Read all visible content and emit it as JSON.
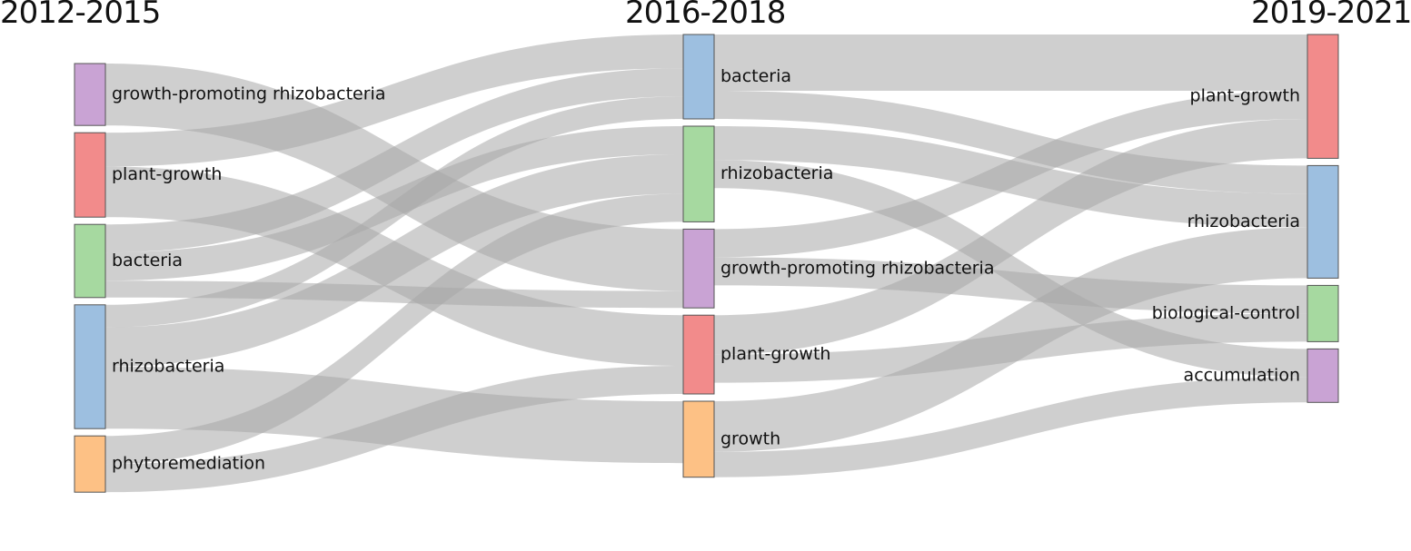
{
  "columns": [
    {
      "key": "c0",
      "title": "2012-2015"
    },
    {
      "key": "c1",
      "title": "2016-2018"
    },
    {
      "key": "c2",
      "title": "2019-2021"
    }
  ],
  "colors": {
    "purple": "#c9a3d4",
    "red": "#f28b8b",
    "green": "#a6d9a0",
    "blue": "#9dbfe0",
    "orange": "#fdc185",
    "link": "#a8a8a8"
  },
  "nodes": [
    {
      "id": "a_gpr",
      "column": 0,
      "label": "growth-promoting rhizobacteria",
      "color": "purple"
    },
    {
      "id": "a_pg",
      "column": 0,
      "label": "plant-growth",
      "color": "red"
    },
    {
      "id": "a_bac",
      "column": 0,
      "label": "bacteria",
      "color": "green"
    },
    {
      "id": "a_rhz",
      "column": 0,
      "label": "rhizobacteria",
      "color": "blue"
    },
    {
      "id": "a_phy",
      "column": 0,
      "label": "phytoremediation",
      "color": "orange"
    },
    {
      "id": "b_bac",
      "column": 1,
      "label": "bacteria",
      "color": "blue"
    },
    {
      "id": "b_rhz",
      "column": 1,
      "label": "rhizobacteria",
      "color": "green"
    },
    {
      "id": "b_gpr",
      "column": 1,
      "label": "growth-promoting rhizobacteria",
      "color": "purple"
    },
    {
      "id": "b_pg",
      "column": 1,
      "label": "plant-growth",
      "color": "red"
    },
    {
      "id": "b_gro",
      "column": 1,
      "label": "growth",
      "color": "orange"
    },
    {
      "id": "c_pg",
      "column": 2,
      "label": "plant-growth",
      "color": "red"
    },
    {
      "id": "c_rhz",
      "column": 2,
      "label": "rhizobacteria",
      "color": "blue"
    },
    {
      "id": "c_bio",
      "column": 2,
      "label": "biological-control",
      "color": "green"
    },
    {
      "id": "c_acc",
      "column": 2,
      "label": "accumulation",
      "color": "purple"
    }
  ],
  "links": [
    {
      "source": "a_gpr",
      "target": "b_gpr",
      "value": 22
    },
    {
      "source": "a_pg",
      "target": "b_bac",
      "value": 12
    },
    {
      "source": "a_pg",
      "target": "b_pg",
      "value": 18
    },
    {
      "source": "a_bac",
      "target": "b_bac",
      "value": 10
    },
    {
      "source": "a_bac",
      "target": "b_rhz",
      "value": 10
    },
    {
      "source": "a_bac",
      "target": "b_gpr",
      "value": 6
    },
    {
      "source": "a_rhz",
      "target": "b_bac",
      "value": 8
    },
    {
      "source": "a_rhz",
      "target": "b_rhz",
      "value": 14
    },
    {
      "source": "a_rhz",
      "target": "b_gro",
      "value": 22
    },
    {
      "source": "a_phy",
      "target": "b_rhz",
      "value": 10
    },
    {
      "source": "a_phy",
      "target": "b_pg",
      "value": 10
    },
    {
      "source": "b_bac",
      "target": "c_pg",
      "value": 20
    },
    {
      "source": "b_bac",
      "target": "c_rhz",
      "value": 10
    },
    {
      "source": "b_rhz",
      "target": "c_rhz",
      "value": 12
    },
    {
      "source": "b_rhz",
      "target": "c_acc",
      "value": 10
    },
    {
      "source": "b_gpr",
      "target": "c_pg",
      "value": 10
    },
    {
      "source": "b_gpr",
      "target": "c_bio",
      "value": 10
    },
    {
      "source": "b_pg",
      "target": "c_pg",
      "value": 14
    },
    {
      "source": "b_pg",
      "target": "c_bio",
      "value": 10
    },
    {
      "source": "b_gro",
      "target": "c_rhz",
      "value": 18
    },
    {
      "source": "b_gro",
      "target": "c_acc",
      "value": 9
    }
  ]
}
